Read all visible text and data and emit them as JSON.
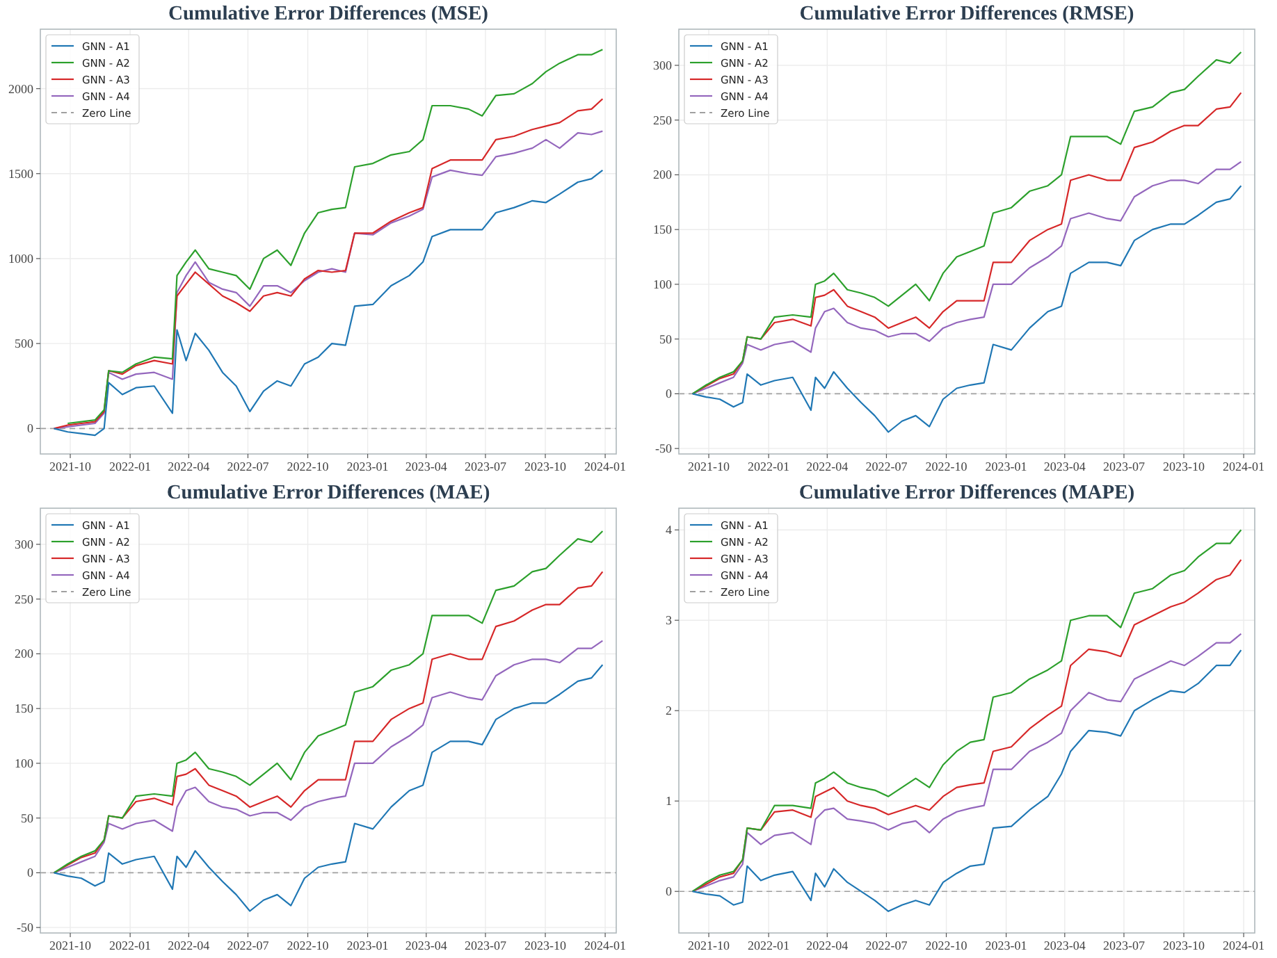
{
  "chart_data": [
    {
      "type": "line",
      "title": "Cumulative Error Differences (MSE)",
      "x": [
        "2021-09-06",
        "2021-09-27",
        "2021-10-18",
        "2021-11-08",
        "2021-11-22",
        "2021-11-29",
        "2021-12-20",
        "2022-01-10",
        "2022-02-07",
        "2022-03-07",
        "2022-03-14",
        "2022-03-28",
        "2022-04-11",
        "2022-05-02",
        "2022-05-23",
        "2022-06-13",
        "2022-07-04",
        "2022-07-25",
        "2022-08-15",
        "2022-09-05",
        "2022-09-26",
        "2022-10-17",
        "2022-11-07",
        "2022-11-28",
        "2022-12-12",
        "2023-01-09",
        "2023-02-06",
        "2023-03-06",
        "2023-03-27",
        "2023-04-10",
        "2023-05-08",
        "2023-06-05",
        "2023-06-26",
        "2023-07-17",
        "2023-08-14",
        "2023-09-11",
        "2023-10-02",
        "2023-10-23",
        "2023-11-20",
        "2023-12-11",
        "2023-12-28"
      ],
      "series": [
        {
          "name": "GNN - A1",
          "color": "#1f77b4",
          "values": [
            0,
            -20,
            -30,
            -40,
            0,
            270,
            200,
            240,
            250,
            90,
            580,
            400,
            560,
            460,
            330,
            250,
            100,
            220,
            280,
            250,
            380,
            420,
            500,
            490,
            720,
            730,
            840,
            900,
            980,
            1130,
            1170,
            1170,
            1170,
            1270,
            1300,
            1340,
            1330,
            1380,
            1450,
            1470,
            1520
          ]
        },
        {
          "name": "GNN - A2",
          "color": "#2ca02c",
          "values": [
            null,
            30,
            40,
            50,
            110,
            340,
            330,
            380,
            420,
            410,
            900,
            980,
            1050,
            940,
            920,
            900,
            820,
            1000,
            1050,
            960,
            1150,
            1270,
            1290,
            1300,
            1540,
            1560,
            1610,
            1630,
            1700,
            1900,
            1900,
            1880,
            1840,
            1960,
            1970,
            2030,
            2100,
            2150,
            2200,
            2200,
            2230
          ]
        },
        {
          "name": "GNN - A3",
          "color": "#d62728",
          "values": [
            0,
            20,
            30,
            40,
            100,
            340,
            320,
            370,
            400,
            380,
            780,
            850,
            920,
            850,
            780,
            740,
            690,
            780,
            800,
            780,
            880,
            930,
            920,
            930,
            1150,
            1150,
            1220,
            1270,
            1300,
            1530,
            1580,
            1580,
            1580,
            1700,
            1720,
            1760,
            1780,
            1800,
            1870,
            1880,
            1940
          ]
        },
        {
          "name": "GNN - A4",
          "color": "#9467bd",
          "values": [
            0,
            10,
            20,
            30,
            90,
            330,
            290,
            320,
            330,
            290,
            800,
            900,
            980,
            860,
            820,
            800,
            720,
            840,
            840,
            800,
            870,
            920,
            940,
            920,
            1150,
            1140,
            1210,
            1250,
            1290,
            1480,
            1520,
            1500,
            1490,
            1600,
            1620,
            1650,
            1700,
            1650,
            1740,
            1730,
            1750
          ]
        }
      ],
      "ref_lines": [
        {
          "axis": "y",
          "value": 0,
          "label": "Zero Line",
          "color": "#a0a0a0",
          "line_style": "dashed"
        }
      ],
      "xlim": [
        "2021-08-16",
        "2024-01-18"
      ],
      "xticks": [
        {
          "value": "2021-10-01",
          "label": "2021-10"
        },
        {
          "value": "2022-01-01",
          "label": "2022-01"
        },
        {
          "value": "2022-04-01",
          "label": "2022-04"
        },
        {
          "value": "2022-07-01",
          "label": "2022-07"
        },
        {
          "value": "2022-10-01",
          "label": "2022-10"
        },
        {
          "value": "2023-01-01",
          "label": "2023-01"
        },
        {
          "value": "2023-04-01",
          "label": "2023-04"
        },
        {
          "value": "2023-07-01",
          "label": "2023-07"
        },
        {
          "value": "2023-10-01",
          "label": "2023-10"
        },
        {
          "value": "2024-01-01",
          "label": "2024-01"
        }
      ],
      "ylim": [
        -150,
        2350
      ],
      "yticks": [
        0,
        500,
        1000,
        1500,
        2000
      ],
      "grid": true,
      "legend": "top left"
    },
    {
      "type": "line",
      "title": "Cumulative Error Differences (RMSE)",
      "x": [
        "2021-09-06",
        "2021-09-27",
        "2021-10-18",
        "2021-11-08",
        "2021-11-22",
        "2021-11-29",
        "2021-12-20",
        "2022-01-10",
        "2022-02-07",
        "2022-03-07",
        "2022-03-14",
        "2022-03-28",
        "2022-04-11",
        "2022-05-02",
        "2022-05-23",
        "2022-06-13",
        "2022-07-04",
        "2022-07-25",
        "2022-08-15",
        "2022-09-05",
        "2022-09-26",
        "2022-10-17",
        "2022-11-07",
        "2022-11-28",
        "2022-12-12",
        "2023-01-09",
        "2023-02-06",
        "2023-03-06",
        "2023-03-27",
        "2023-04-10",
        "2023-05-08",
        "2023-06-05",
        "2023-06-26",
        "2023-07-17",
        "2023-08-14",
        "2023-09-11",
        "2023-10-02",
        "2023-10-23",
        "2023-11-20",
        "2023-12-11",
        "2023-12-28"
      ],
      "series": [
        {
          "name": "GNN - A1",
          "color": "#1f77b4",
          "values": [
            0,
            -3,
            -5,
            -12,
            -8,
            18,
            8,
            12,
            15,
            -15,
            15,
            5,
            20,
            5,
            -8,
            -20,
            -35,
            -25,
            -20,
            -30,
            -5,
            5,
            8,
            10,
            45,
            40,
            60,
            75,
            80,
            110,
            120,
            120,
            117,
            140,
            150,
            155,
            155,
            163,
            175,
            178,
            190
          ]
        },
        {
          "name": "GNN - A2",
          "color": "#2ca02c",
          "values": [
            0,
            8,
            15,
            20,
            30,
            52,
            50,
            70,
            72,
            70,
            100,
            103,
            110,
            95,
            92,
            88,
            80,
            90,
            100,
            85,
            110,
            125,
            130,
            135,
            165,
            170,
            185,
            190,
            200,
            235,
            235,
            235,
            228,
            258,
            262,
            275,
            278,
            290,
            305,
            302,
            312
          ]
        },
        {
          "name": "GNN - A3",
          "color": "#d62728",
          "values": [
            0,
            7,
            14,
            18,
            30,
            52,
            50,
            65,
            68,
            62,
            88,
            90,
            95,
            80,
            75,
            70,
            60,
            65,
            70,
            60,
            75,
            85,
            85,
            85,
            120,
            120,
            140,
            150,
            155,
            195,
            200,
            195,
            195,
            225,
            230,
            240,
            245,
            245,
            260,
            262,
            275
          ]
        },
        {
          "name": "GNN - A4",
          "color": "#9467bd",
          "values": [
            0,
            5,
            10,
            15,
            28,
            45,
            40,
            45,
            48,
            38,
            60,
            75,
            78,
            65,
            60,
            58,
            52,
            55,
            55,
            48,
            60,
            65,
            68,
            70,
            100,
            100,
            115,
            125,
            135,
            160,
            165,
            160,
            158,
            180,
            190,
            195,
            195,
            192,
            205,
            205,
            212
          ]
        }
      ],
      "ref_lines": [
        {
          "axis": "y",
          "value": 0,
          "label": "Zero Line",
          "color": "#a0a0a0",
          "line_style": "dashed"
        }
      ],
      "xlim": [
        "2021-08-16",
        "2024-01-18"
      ],
      "xticks": [
        {
          "value": "2021-10-01",
          "label": "2021-10"
        },
        {
          "value": "2022-01-01",
          "label": "2022-01"
        },
        {
          "value": "2022-04-01",
          "label": "2022-04"
        },
        {
          "value": "2022-07-01",
          "label": "2022-07"
        },
        {
          "value": "2022-10-01",
          "label": "2022-10"
        },
        {
          "value": "2023-01-01",
          "label": "2023-01"
        },
        {
          "value": "2023-04-01",
          "label": "2023-04"
        },
        {
          "value": "2023-07-01",
          "label": "2023-07"
        },
        {
          "value": "2023-10-01",
          "label": "2023-10"
        },
        {
          "value": "2024-01-01",
          "label": "2024-01"
        }
      ],
      "ylim": [
        -55,
        333
      ],
      "yticks": [
        -50,
        0,
        50,
        100,
        150,
        200,
        250,
        300
      ],
      "grid": true,
      "legend": "top left"
    },
    {
      "type": "line",
      "title": "Cumulative Error Differences (MAE)",
      "x": [
        "2021-09-06",
        "2021-09-27",
        "2021-10-18",
        "2021-11-08",
        "2021-11-22",
        "2021-11-29",
        "2021-12-20",
        "2022-01-10",
        "2022-02-07",
        "2022-03-07",
        "2022-03-14",
        "2022-03-28",
        "2022-04-11",
        "2022-05-02",
        "2022-05-23",
        "2022-06-13",
        "2022-07-04",
        "2022-07-25",
        "2022-08-15",
        "2022-09-05",
        "2022-09-26",
        "2022-10-17",
        "2022-11-07",
        "2022-11-28",
        "2022-12-12",
        "2023-01-09",
        "2023-02-06",
        "2023-03-06",
        "2023-03-27",
        "2023-04-10",
        "2023-05-08",
        "2023-06-05",
        "2023-06-26",
        "2023-07-17",
        "2023-08-14",
        "2023-09-11",
        "2023-10-02",
        "2023-10-23",
        "2023-11-20",
        "2023-12-11",
        "2023-12-28"
      ],
      "series": [
        {
          "name": "GNN - A1",
          "color": "#1f77b4",
          "values": [
            0,
            -3,
            -5,
            -12,
            -8,
            18,
            8,
            12,
            15,
            -15,
            15,
            5,
            20,
            5,
            -8,
            -20,
            -35,
            -25,
            -20,
            -30,
            -5,
            5,
            8,
            10,
            45,
            40,
            60,
            75,
            80,
            110,
            120,
            120,
            117,
            140,
            150,
            155,
            155,
            163,
            175,
            178,
            190
          ]
        },
        {
          "name": "GNN - A2",
          "color": "#2ca02c",
          "values": [
            0,
            8,
            15,
            20,
            30,
            52,
            50,
            70,
            72,
            70,
            100,
            103,
            110,
            95,
            92,
            88,
            80,
            90,
            100,
            85,
            110,
            125,
            130,
            135,
            165,
            170,
            185,
            190,
            200,
            235,
            235,
            235,
            228,
            258,
            262,
            275,
            278,
            290,
            305,
            302,
            312
          ]
        },
        {
          "name": "GNN - A3",
          "color": "#d62728",
          "values": [
            0,
            7,
            14,
            18,
            30,
            52,
            50,
            65,
            68,
            62,
            88,
            90,
            95,
            80,
            75,
            70,
            60,
            65,
            70,
            60,
            75,
            85,
            85,
            85,
            120,
            120,
            140,
            150,
            155,
            195,
            200,
            195,
            195,
            225,
            230,
            240,
            245,
            245,
            260,
            262,
            275
          ]
        },
        {
          "name": "GNN - A4",
          "color": "#9467bd",
          "values": [
            0,
            5,
            10,
            15,
            28,
            45,
            40,
            45,
            48,
            38,
            60,
            75,
            78,
            65,
            60,
            58,
            52,
            55,
            55,
            48,
            60,
            65,
            68,
            70,
            100,
            100,
            115,
            125,
            135,
            160,
            165,
            160,
            158,
            180,
            190,
            195,
            195,
            192,
            205,
            205,
            212
          ]
        }
      ],
      "ref_lines": [
        {
          "axis": "y",
          "value": 0,
          "label": "Zero Line",
          "color": "#a0a0a0",
          "line_style": "dashed"
        }
      ],
      "xlim": [
        "2021-08-16",
        "2024-01-18"
      ],
      "xticks": [
        {
          "value": "2021-10-01",
          "label": "2021-10"
        },
        {
          "value": "2022-01-01",
          "label": "2022-01"
        },
        {
          "value": "2022-04-01",
          "label": "2022-04"
        },
        {
          "value": "2022-07-01",
          "label": "2022-07"
        },
        {
          "value": "2022-10-01",
          "label": "2022-10"
        },
        {
          "value": "2023-01-01",
          "label": "2023-01"
        },
        {
          "value": "2023-04-01",
          "label": "2023-04"
        },
        {
          "value": "2023-07-01",
          "label": "2023-07"
        },
        {
          "value": "2023-10-01",
          "label": "2023-10"
        },
        {
          "value": "2024-01-01",
          "label": "2024-01"
        }
      ],
      "ylim": [
        -55,
        333
      ],
      "yticks": [
        -50,
        0,
        50,
        100,
        150,
        200,
        250,
        300
      ],
      "grid": true,
      "legend": "top left"
    },
    {
      "type": "line",
      "title": "Cumulative Error Differences (MAPE)",
      "x": [
        "2021-09-06",
        "2021-09-27",
        "2021-10-18",
        "2021-11-08",
        "2021-11-22",
        "2021-11-29",
        "2021-12-20",
        "2022-01-10",
        "2022-02-07",
        "2022-03-07",
        "2022-03-14",
        "2022-03-28",
        "2022-04-11",
        "2022-05-02",
        "2022-05-23",
        "2022-06-13",
        "2022-07-04",
        "2022-07-25",
        "2022-08-15",
        "2022-09-05",
        "2022-09-26",
        "2022-10-17",
        "2022-11-07",
        "2022-11-28",
        "2022-12-12",
        "2023-01-09",
        "2023-02-06",
        "2023-03-06",
        "2023-03-27",
        "2023-04-10",
        "2023-05-08",
        "2023-06-05",
        "2023-06-26",
        "2023-07-17",
        "2023-08-14",
        "2023-09-11",
        "2023-10-02",
        "2023-10-23",
        "2023-11-20",
        "2023-12-11",
        "2023-12-28"
      ],
      "series": [
        {
          "name": "GNN - A1",
          "color": "#1f77b4",
          "values": [
            0,
            -0.03,
            -0.05,
            -0.15,
            -0.12,
            0.28,
            0.12,
            0.18,
            0.22,
            -0.1,
            0.2,
            0.05,
            0.25,
            0.1,
            0,
            -0.1,
            -0.22,
            -0.15,
            -0.1,
            -0.15,
            0.1,
            0.2,
            0.28,
            0.3,
            0.7,
            0.72,
            0.9,
            1.05,
            1.3,
            1.55,
            1.78,
            1.76,
            1.72,
            2.0,
            2.12,
            2.22,
            2.2,
            2.3,
            2.5,
            2.5,
            2.67
          ]
        },
        {
          "name": "GNN - A2",
          "color": "#2ca02c",
          "values": [
            0,
            0.1,
            0.18,
            0.22,
            0.35,
            0.7,
            0.68,
            0.95,
            0.95,
            0.92,
            1.2,
            1.25,
            1.32,
            1.2,
            1.15,
            1.12,
            1.05,
            1.15,
            1.25,
            1.15,
            1.4,
            1.55,
            1.65,
            1.68,
            2.15,
            2.2,
            2.35,
            2.45,
            2.55,
            3.0,
            3.05,
            3.05,
            2.92,
            3.3,
            3.35,
            3.5,
            3.55,
            3.7,
            3.85,
            3.85,
            4.0
          ]
        },
        {
          "name": "GNN - A3",
          "color": "#d62728",
          "values": [
            0,
            0.08,
            0.16,
            0.2,
            0.35,
            0.7,
            0.68,
            0.88,
            0.9,
            0.82,
            1.05,
            1.1,
            1.15,
            1.0,
            0.95,
            0.92,
            0.85,
            0.9,
            0.95,
            0.9,
            1.05,
            1.15,
            1.18,
            1.2,
            1.55,
            1.6,
            1.8,
            1.95,
            2.05,
            2.5,
            2.68,
            2.65,
            2.6,
            2.95,
            3.05,
            3.15,
            3.2,
            3.3,
            3.45,
            3.5,
            3.67
          ]
        },
        {
          "name": "GNN - A4",
          "color": "#9467bd",
          "values": [
            0,
            0.06,
            0.12,
            0.16,
            0.3,
            0.65,
            0.52,
            0.62,
            0.65,
            0.52,
            0.8,
            0.9,
            0.92,
            0.8,
            0.78,
            0.75,
            0.68,
            0.75,
            0.78,
            0.65,
            0.8,
            0.88,
            0.92,
            0.95,
            1.35,
            1.35,
            1.55,
            1.65,
            1.75,
            2.0,
            2.2,
            2.12,
            2.1,
            2.35,
            2.45,
            2.55,
            2.5,
            2.6,
            2.75,
            2.75,
            2.85
          ]
        }
      ],
      "ref_lines": [
        {
          "axis": "y",
          "value": 0,
          "label": "Zero Line",
          "color": "#a0a0a0",
          "line_style": "dashed"
        }
      ],
      "xlim": [
        "2021-08-16",
        "2024-01-18"
      ],
      "xticks": [
        {
          "value": "2021-10-01",
          "label": "2021-10"
        },
        {
          "value": "2022-01-01",
          "label": "2022-01"
        },
        {
          "value": "2022-04-01",
          "label": "2022-04"
        },
        {
          "value": "2022-07-01",
          "label": "2022-07"
        },
        {
          "value": "2022-10-01",
          "label": "2022-10"
        },
        {
          "value": "2023-01-01",
          "label": "2023-01"
        },
        {
          "value": "2023-04-01",
          "label": "2023-04"
        },
        {
          "value": "2023-07-01",
          "label": "2023-07"
        },
        {
          "value": "2023-10-01",
          "label": "2023-10"
        },
        {
          "value": "2024-01-01",
          "label": "2024-01"
        }
      ],
      "ylim": [
        -0.46,
        4.24
      ],
      "yticks": [
        0,
        1,
        2,
        3,
        4
      ],
      "grid": true,
      "legend": "top left"
    }
  ]
}
